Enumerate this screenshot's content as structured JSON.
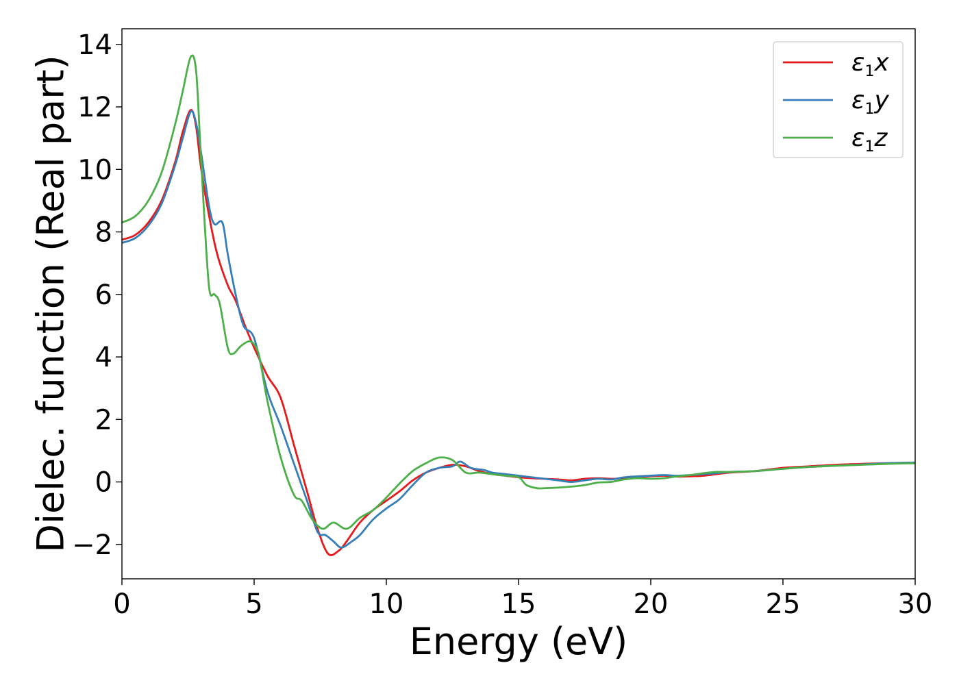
{
  "chart_data": {
    "type": "line",
    "title": "",
    "xlabel": "Energy (eV)",
    "ylabel": "Dielec. function (Real part)",
    "xlim": [
      0,
      30
    ],
    "ylim": [
      -3.1,
      14.5
    ],
    "xticks": [
      0,
      5,
      10,
      15,
      20,
      25,
      30
    ],
    "yticks": [
      -2,
      0,
      2,
      4,
      6,
      8,
      10,
      12,
      14
    ],
    "ytick_labels": [
      "−2",
      "0",
      "2",
      "4",
      "6",
      "8",
      "10",
      "12",
      "14"
    ],
    "grid": false,
    "legend_position": "top-right",
    "series": [
      {
        "name": "ε₁x",
        "legend": {
          "symbol": "ε",
          "sub": "1",
          "axis": "x"
        },
        "color": "#e41a1c",
        "x": [
          0,
          0.5,
          1,
          1.5,
          2,
          2.3,
          2.6,
          2.8,
          3.0,
          3.3,
          3.6,
          4.0,
          4.3,
          4.7,
          5.0,
          5.5,
          6.0,
          6.5,
          7.0,
          7.4,
          7.8,
          8.2,
          8.5,
          9.0,
          9.5,
          10,
          10.5,
          11,
          11.5,
          12,
          12.5,
          13,
          13.5,
          14,
          14.5,
          15,
          15.5,
          16,
          16.5,
          17,
          17.5,
          18,
          18.5,
          19,
          19.5,
          20,
          20.5,
          21,
          21.5,
          22,
          22.5,
          23,
          24,
          25,
          26,
          27,
          28,
          29,
          30
        ],
        "y": [
          7.75,
          7.9,
          8.3,
          9.0,
          10.2,
          11.2,
          11.9,
          11.4,
          10.0,
          8.5,
          7.3,
          6.3,
          5.8,
          4.9,
          4.3,
          3.4,
          2.7,
          1.2,
          -0.3,
          -1.5,
          -2.3,
          -2.2,
          -1.9,
          -1.3,
          -0.9,
          -0.6,
          -0.3,
          0.05,
          0.3,
          0.45,
          0.55,
          0.5,
          0.35,
          0.25,
          0.2,
          0.15,
          0.12,
          0.1,
          0.08,
          0.05,
          0.1,
          0.12,
          0.1,
          0.12,
          0.15,
          0.18,
          0.2,
          0.17,
          0.18,
          0.2,
          0.25,
          0.3,
          0.35,
          0.45,
          0.5,
          0.55,
          0.58,
          0.6,
          0.62
        ]
      },
      {
        "name": "ε₁y",
        "legend": {
          "symbol": "ε",
          "sub": "1",
          "axis": "y"
        },
        "color": "#377eb8",
        "x": [
          0,
          0.5,
          1,
          1.5,
          2,
          2.3,
          2.6,
          2.8,
          3.0,
          3.3,
          3.5,
          3.8,
          4.0,
          4.3,
          4.6,
          5.0,
          5.5,
          6.0,
          6.5,
          7.0,
          7.4,
          7.7,
          8.0,
          8.3,
          8.7,
          9.0,
          9.5,
          10,
          10.5,
          11,
          11.5,
          12,
          12.5,
          12.8,
          13.2,
          13.7,
          14,
          14.5,
          15,
          15.5,
          16,
          16.5,
          17,
          17.5,
          18,
          18.5,
          19,
          19.5,
          20,
          20.5,
          21,
          21.5,
          22,
          22.5,
          23,
          24,
          25,
          26,
          27,
          28,
          29,
          30
        ],
        "y": [
          7.65,
          7.8,
          8.2,
          8.9,
          10.1,
          11.0,
          11.85,
          11.5,
          10.5,
          8.8,
          8.25,
          8.3,
          7.3,
          6.0,
          5.0,
          4.6,
          2.9,
          1.8,
          0.6,
          -0.6,
          -1.6,
          -1.7,
          -1.9,
          -2.1,
          -1.9,
          -1.7,
          -1.2,
          -0.85,
          -0.55,
          -0.1,
          0.3,
          0.45,
          0.5,
          0.65,
          0.45,
          0.38,
          0.3,
          0.25,
          0.2,
          0.15,
          0.1,
          0.05,
          0.0,
          0.05,
          0.1,
          0.08,
          0.15,
          0.18,
          0.2,
          0.22,
          0.2,
          0.22,
          0.25,
          0.28,
          0.32,
          0.35,
          0.42,
          0.48,
          0.52,
          0.56,
          0.6,
          0.62
        ]
      },
      {
        "name": "ε₁z",
        "legend": {
          "symbol": "ε",
          "sub": "1",
          "axis": "z"
        },
        "color": "#4daf4a",
        "x": [
          0,
          0.5,
          1,
          1.5,
          2,
          2.3,
          2.6,
          2.8,
          2.95,
          3.1,
          3.3,
          3.5,
          3.7,
          4.0,
          4.2,
          4.5,
          4.8,
          5.0,
          5.2,
          5.5,
          6.0,
          6.5,
          6.8,
          7.2,
          7.6,
          8.0,
          8.5,
          9.0,
          9.5,
          10,
          10.5,
          11,
          11.5,
          12,
          12.5,
          13,
          13.5,
          14,
          14.5,
          15,
          15.3,
          15.7,
          16,
          16.5,
          17,
          17.5,
          18,
          18.5,
          19,
          19.5,
          20,
          20.5,
          21,
          21.5,
          22,
          22.5,
          23,
          24,
          25,
          26,
          27,
          28,
          29,
          30
        ],
        "y": [
          8.3,
          8.5,
          9.0,
          9.9,
          11.4,
          12.5,
          13.6,
          13.2,
          11.0,
          8.7,
          6.2,
          6.0,
          5.7,
          4.3,
          4.1,
          4.35,
          4.5,
          4.4,
          4.0,
          2.6,
          0.8,
          -0.4,
          -0.6,
          -1.2,
          -1.5,
          -1.3,
          -1.5,
          -1.15,
          -0.9,
          -0.5,
          -0.05,
          0.35,
          0.6,
          0.78,
          0.7,
          0.3,
          0.3,
          0.25,
          0.2,
          0.15,
          -0.1,
          -0.2,
          -0.2,
          -0.18,
          -0.15,
          -0.1,
          -0.02,
          0.0,
          0.08,
          0.12,
          0.1,
          0.12,
          0.18,
          0.22,
          0.28,
          0.32,
          0.32,
          0.35,
          0.42,
          0.48,
          0.52,
          0.55,
          0.58,
          0.6
        ]
      }
    ]
  }
}
